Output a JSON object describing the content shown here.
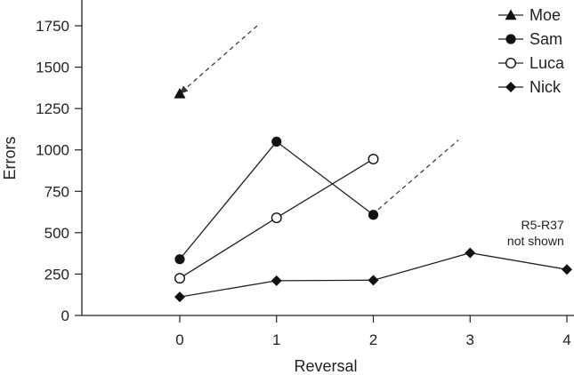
{
  "chart_data": {
    "type": "line",
    "title": "",
    "xlabel": "Reversal",
    "ylabel": "Errors",
    "xlim": [
      -1,
      4
    ],
    "ylim": [
      0,
      1800
    ],
    "x_ticks": [
      0,
      1,
      2,
      3,
      4
    ],
    "y_ticks": [
      0,
      250,
      500,
      750,
      1000,
      1250,
      1500,
      1750
    ],
    "grid": false,
    "legend_position": "top-right",
    "series": [
      {
        "name": "Moe",
        "marker": "triangle",
        "x": [
          0
        ],
        "y": [
          1340
        ]
      },
      {
        "name": "Sam",
        "marker": "circle-filled",
        "x": [
          0,
          1,
          2
        ],
        "y": [
          340,
          1050,
          608
        ]
      },
      {
        "name": "Luca",
        "marker": "circle-open",
        "x": [
          0,
          1,
          2
        ],
        "y": [
          225,
          590,
          945
        ]
      },
      {
        "name": "Nick",
        "marker": "diamond",
        "x": [
          0,
          1,
          2,
          3,
          4
        ],
        "y": [
          112,
          210,
          213,
          378,
          278
        ]
      }
    ],
    "annotations": [
      {
        "type": "dashed-arrow",
        "from": [
          0.8,
          1750
        ],
        "to": [
          0,
          1340
        ]
      },
      {
        "type": "dashed-line",
        "from": [
          2.05,
          640
        ],
        "to": [
          2.88,
          1060
        ]
      },
      {
        "type": "text",
        "lines": [
          "R5-R37",
          "not shown"
        ],
        "x": 3.97,
        "y": 500
      }
    ],
    "colors": {
      "line": "#222222",
      "marker": "#111111",
      "axis": "#222222",
      "annotation": "#333333"
    }
  }
}
